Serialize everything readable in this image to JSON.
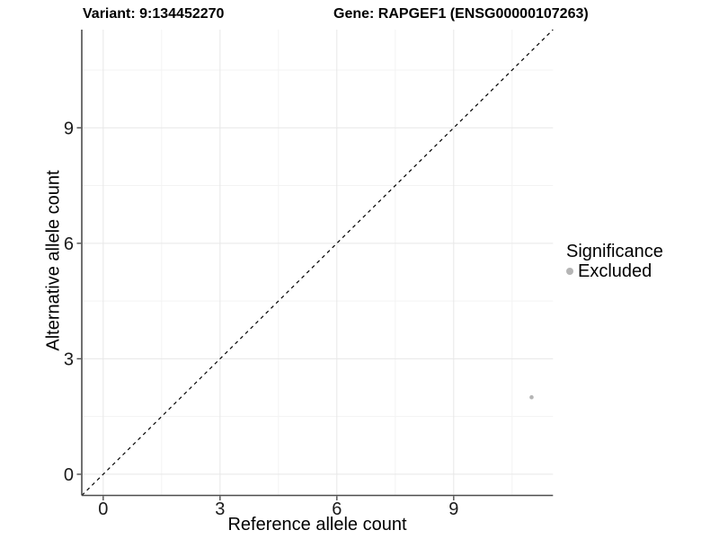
{
  "chart_data": {
    "type": "scatter",
    "titles": {
      "variant": "Variant: 9:134452270",
      "gene": "Gene: RAPGEF1 (ENSG00000107263)"
    },
    "xlabel": "Reference allele count",
    "ylabel": "Alternative allele count",
    "xlim": [
      -0.55,
      11.55
    ],
    "ylim": [
      -0.55,
      11.55
    ],
    "x_ticks": [
      0,
      3,
      6,
      9
    ],
    "y_ticks": [
      0,
      3,
      6,
      9
    ],
    "x_minor": [
      1.5,
      4.5,
      7.5,
      10.5
    ],
    "y_minor": [
      1.5,
      4.5,
      7.5,
      10.5
    ],
    "grid": true,
    "reference_line": {
      "type": "identity",
      "slope": 1,
      "intercept": 0,
      "style": "dashed",
      "color": "#000000"
    },
    "series": [
      {
        "name": "Excluded",
        "color": "#b5b5b5",
        "points": [
          {
            "x": 11,
            "y": 2
          }
        ]
      }
    ],
    "legend": {
      "title": "Significance",
      "position": "right",
      "items": [
        {
          "label": "Excluded",
          "color": "#b5b5b5"
        }
      ]
    },
    "colors": {
      "grid_major": "#e7e7e7",
      "grid_minor": "#f3f3f3",
      "axis": "#4d4d4d",
      "tick_label": "#1a1a1a",
      "background": "#ffffff"
    }
  }
}
